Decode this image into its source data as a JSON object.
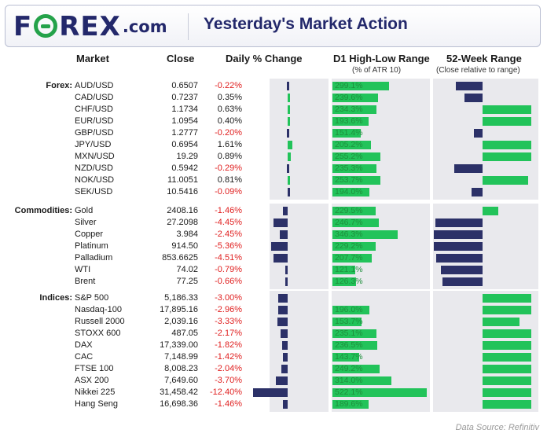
{
  "header": {
    "logo_text": "FOREX",
    "logo_domain": ".com",
    "title": "Yesterday's Market Action"
  },
  "columns": {
    "market": "Market",
    "close": "Close",
    "daily": "Daily % Change",
    "d1": "D1 High-Low Range",
    "d1_sub": "(% of ATR 10)",
    "wk52": "52-Week Range",
    "wk52_sub": "(Close relative to range)"
  },
  "colors": {
    "navy": "#2c3168",
    "green": "#22c35a",
    "negative_text": "#e02020",
    "panel": "#e9e9ed"
  },
  "groups": [
    {
      "label": "Forex:",
      "rows": [
        {
          "name": "AUD/USD",
          "close": "0.6507",
          "chg": "-0.22%",
          "chg_v": -0.22,
          "range": "299.1%",
          "range_v": 299.1,
          "wk": -0.55
        },
        {
          "name": "CAD/USD",
          "close": "0.7237",
          "chg": "0.35%",
          "chg_v": 0.35,
          "range": "239.6%",
          "range_v": 239.6,
          "wk": -0.37
        },
        {
          "name": "CHF/USD",
          "close": "1.1734",
          "chg": "0.63%",
          "chg_v": 0.63,
          "range": "234.3%",
          "range_v": 234.3,
          "wk": 1.0
        },
        {
          "name": "EUR/USD",
          "close": "1.0954",
          "chg": "0.40%",
          "chg_v": 0.4,
          "range": "193.6%",
          "range_v": 193.6,
          "wk": 1.0
        },
        {
          "name": "GBP/USD",
          "close": "1.2777",
          "chg": "-0.20%",
          "chg_v": -0.2,
          "range": "151.4%",
          "range_v": 151.4,
          "wk": -0.17
        },
        {
          "name": "JPY/USD",
          "close": "0.6954",
          "chg": "1.61%",
          "chg_v": 1.61,
          "range": "205.2%",
          "range_v": 205.2,
          "wk": 1.0
        },
        {
          "name": "MXN/USD",
          "close": "19.29",
          "chg": "0.89%",
          "chg_v": 0.89,
          "range": "255.2%",
          "range_v": 255.2,
          "wk": 1.0
        },
        {
          "name": "NZD/USD",
          "close": "0.5942",
          "chg": "-0.29%",
          "chg_v": -0.29,
          "range": "235.3%",
          "range_v": 235.3,
          "wk": -0.58
        },
        {
          "name": "NOK/USD",
          "close": "11.0051",
          "chg": "0.81%",
          "chg_v": 0.81,
          "range": "253.7%",
          "range_v": 253.7,
          "wk": 0.93
        },
        {
          "name": "SEK/USD",
          "close": "10.5416",
          "chg": "-0.09%",
          "chg_v": -0.09,
          "range": "194.0%",
          "range_v": 194.0,
          "wk": -0.22
        }
      ]
    },
    {
      "label": "Commodities:",
      "rows": [
        {
          "name": "Gold",
          "close": "2408.16",
          "chg": "-1.46%",
          "chg_v": -1.46,
          "range": "229.5%",
          "range_v": 229.5,
          "wk": 0.33
        },
        {
          "name": "Silver",
          "close": "27.2098",
          "chg": "-4.45%",
          "chg_v": -4.45,
          "range": "246.7%",
          "range_v": 246.7,
          "wk": -0.97
        },
        {
          "name": "Copper",
          "close": "3.984",
          "chg": "-2.45%",
          "chg_v": -2.45,
          "range": "346.3%",
          "range_v": 346.3,
          "wk": -1.0
        },
        {
          "name": "Platinum",
          "close": "914.50",
          "chg": "-5.36%",
          "chg_v": -5.36,
          "range": "229.2%",
          "range_v": 229.2,
          "wk": -1.0
        },
        {
          "name": "Palladium",
          "close": "853.6625",
          "chg": "-4.51%",
          "chg_v": -4.51,
          "range": "207.7%",
          "range_v": 207.7,
          "wk": -0.95
        },
        {
          "name": "WTI",
          "close": "74.02",
          "chg": "-0.79%",
          "chg_v": -0.79,
          "range": "121.1%",
          "range_v": 121.1,
          "wk": -0.85
        },
        {
          "name": "Brent",
          "close": "77.25",
          "chg": "-0.66%",
          "chg_v": -0.66,
          "range": "126.3%",
          "range_v": 126.3,
          "wk": -0.83
        }
      ]
    },
    {
      "label": "Indices:",
      "rows": [
        {
          "name": "S&P 500",
          "close": "5,186.33",
          "chg": "-3.00%",
          "chg_v": -3.0,
          "range": "",
          "range_v": 0,
          "wk": 1.0
        },
        {
          "name": "Nasdaq-100",
          "close": "17,895.16",
          "chg": "-2.96%",
          "chg_v": -2.96,
          "range": "196.0%",
          "range_v": 196.0,
          "wk": 1.0
        },
        {
          "name": "Russell 2000",
          "close": "2,039.16",
          "chg": "-3.33%",
          "chg_v": -3.33,
          "range": "153.7%",
          "range_v": 153.7,
          "wk": 0.76
        },
        {
          "name": "STOXX 600",
          "close": "487.05",
          "chg": "-2.17%",
          "chg_v": -2.17,
          "range": "235.1%",
          "range_v": 235.1,
          "wk": 1.0
        },
        {
          "name": "DAX",
          "close": "17,339.00",
          "chg": "-1.82%",
          "chg_v": -1.82,
          "range": "236.5%",
          "range_v": 236.5,
          "wk": 1.0
        },
        {
          "name": "CAC",
          "close": "7,148.99",
          "chg": "-1.42%",
          "chg_v": -1.42,
          "range": "143.7%",
          "range_v": 143.7,
          "wk": 1.0
        },
        {
          "name": "FTSE 100",
          "close": "8,008.23",
          "chg": "-2.04%",
          "chg_v": -2.04,
          "range": "249.2%",
          "range_v": 249.2,
          "wk": 1.0
        },
        {
          "name": "ASX 200",
          "close": "7,649.60",
          "chg": "-3.70%",
          "chg_v": -3.7,
          "range": "314.0%",
          "range_v": 314.0,
          "wk": 1.0
        },
        {
          "name": "Nikkei 225",
          "close": "31,458.42",
          "chg": "-12.40%",
          "chg_v": -12.4,
          "range": "522.1%",
          "range_v": 522.1,
          "wk": 1.0
        },
        {
          "name": "Hang Seng",
          "close": "16,698.36",
          "chg": "-1.46%",
          "chg_v": -1.46,
          "range": "189.6%",
          "range_v": 189.6,
          "wk": 1.0
        }
      ]
    }
  ],
  "source": "Data Source: Refinitiv"
}
